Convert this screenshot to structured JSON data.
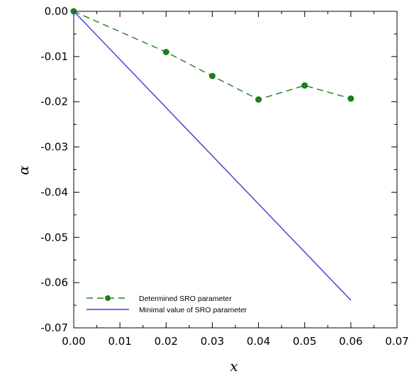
{
  "chart_data": {
    "type": "line",
    "xlabel": "x",
    "ylabel": "α",
    "xlim": [
      0,
      0.07
    ],
    "ylim": [
      -0.07,
      0
    ],
    "x_ticks": [
      0,
      0.01,
      0.02,
      0.03,
      0.04,
      0.05,
      0.06,
      0.07
    ],
    "x_tick_labels": [
      "0.00",
      "0.01",
      "0.02",
      "0.03",
      "0.04",
      "0.05",
      "0.06",
      "0.07"
    ],
    "y_ticks": [
      0,
      -0.01,
      -0.02,
      -0.03,
      -0.04,
      -0.05,
      -0.06,
      -0.07
    ],
    "y_tick_labels": [
      "0.00",
      "-0.01",
      "-0.02",
      "-0.03",
      "-0.04",
      "-0.05",
      "-0.06",
      "-0.07"
    ],
    "grid": false,
    "legend_position": "bottom-left",
    "series": [
      {
        "name": "Determined SRO parameter",
        "color": "#1e7d1e",
        "line_style": "dashed",
        "marker": "circle",
        "x": [
          0,
          0.02,
          0.03,
          0.04,
          0.05,
          0.06
        ],
        "y": [
          0,
          -0.009,
          -0.0143,
          -0.0195,
          -0.0164,
          -0.0193
        ]
      },
      {
        "name": "Minimal value of SRO parameter",
        "color": "#3b3bd9",
        "line_style": "solid",
        "marker": "none",
        "x": [
          0,
          0.06
        ],
        "y": [
          0,
          -0.0639
        ]
      }
    ]
  }
}
